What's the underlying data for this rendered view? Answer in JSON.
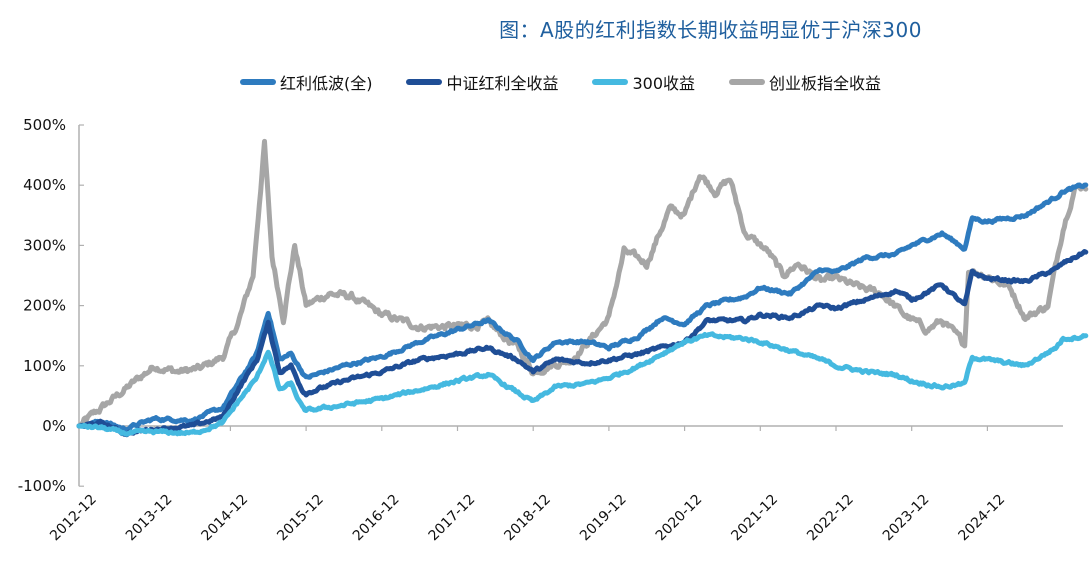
{
  "title": "图：A股的红利指数长期收益明显优于沪深300",
  "chart_data": {
    "type": "line",
    "title": "图：A股的红利指数长期收益明显优于沪深300",
    "xlabel": "",
    "ylabel": "",
    "ylim": [
      -100,
      500
    ],
    "yticks": [
      "500%",
      "400%",
      "300%",
      "200%",
      "100%",
      "0%",
      "-100%"
    ],
    "ytick_values": [
      500,
      400,
      300,
      200,
      100,
      0,
      -100
    ],
    "xticks": [
      "2012-12",
      "2013-12",
      "2014-12",
      "2015-12",
      "2016-12",
      "2017-12",
      "2018-12",
      "2019-12",
      "2020-12",
      "2021-12",
      "2022-12",
      "2023-12",
      "2024-12"
    ],
    "x_range": [
      "2012-12",
      "2025-12"
    ],
    "legend_position": "top",
    "grid": false,
    "series": [
      {
        "name": "红利低波(全)",
        "color": "#2e7bbf",
        "points": [
          [
            0,
            0
          ],
          [
            0.3,
            8
          ],
          [
            0.6,
            -5
          ],
          [
            1,
            12
          ],
          [
            1.5,
            10
          ],
          [
            1.9,
            30
          ],
          [
            2.1,
            70
          ],
          [
            2.35,
            120
          ],
          [
            2.5,
            190
          ],
          [
            2.65,
            110
          ],
          [
            2.8,
            120
          ],
          [
            2.95,
            90
          ],
          [
            3,
            80
          ],
          [
            3.5,
            100
          ],
          [
            4,
            115
          ],
          [
            4.5,
            140
          ],
          [
            5,
            160
          ],
          [
            5.4,
            175
          ],
          [
            5.8,
            140
          ],
          [
            6,
            110
          ],
          [
            6.3,
            140
          ],
          [
            6.7,
            140
          ],
          [
            7,
            130
          ],
          [
            7.4,
            150
          ],
          [
            7.7,
            180
          ],
          [
            8,
            170
          ],
          [
            8.3,
            200
          ],
          [
            8.8,
            215
          ],
          [
            9,
            230
          ],
          [
            9.4,
            220
          ],
          [
            9.8,
            260
          ],
          [
            10,
            255
          ],
          [
            10.4,
            280
          ],
          [
            10.8,
            285
          ],
          [
            11,
            300
          ],
          [
            11.4,
            320
          ],
          [
            11.7,
            295
          ],
          [
            11.8,
            345
          ],
          [
            12,
            340
          ],
          [
            12.5,
            350
          ],
          [
            12.9,
            380
          ],
          [
            13,
            390
          ],
          [
            13.3,
            400
          ]
        ]
      },
      {
        "name": "中证红利全收益",
        "color": "#1f4e96",
        "points": [
          [
            0,
            0
          ],
          [
            0.3,
            5
          ],
          [
            0.6,
            -12
          ],
          [
            1,
            -5
          ],
          [
            1.5,
            0
          ],
          [
            1.9,
            15
          ],
          [
            2.1,
            60
          ],
          [
            2.35,
            110
          ],
          [
            2.5,
            170
          ],
          [
            2.65,
            90
          ],
          [
            2.8,
            100
          ],
          [
            2.95,
            60
          ],
          [
            3,
            55
          ],
          [
            3.5,
            75
          ],
          [
            4,
            90
          ],
          [
            4.5,
            110
          ],
          [
            5,
            120
          ],
          [
            5.4,
            130
          ],
          [
            5.8,
            110
          ],
          [
            6,
            90
          ],
          [
            6.3,
            110
          ],
          [
            6.7,
            105
          ],
          [
            7,
            110
          ],
          [
            7.4,
            120
          ],
          [
            7.7,
            130
          ],
          [
            8,
            140
          ],
          [
            8.3,
            175
          ],
          [
            8.8,
            175
          ],
          [
            9,
            185
          ],
          [
            9.4,
            180
          ],
          [
            9.8,
            200
          ],
          [
            10,
            195
          ],
          [
            10.4,
            210
          ],
          [
            10.8,
            225
          ],
          [
            11,
            210
          ],
          [
            11.4,
            235
          ],
          [
            11.7,
            200
          ],
          [
            11.8,
            255
          ],
          [
            12,
            245
          ],
          [
            12.5,
            240
          ],
          [
            12.9,
            260
          ],
          [
            13,
            270
          ],
          [
            13.3,
            290
          ]
        ]
      },
      {
        "name": "300收益",
        "color": "#45b9e0",
        "points": [
          [
            0,
            0
          ],
          [
            0.3,
            -3
          ],
          [
            0.6,
            -12
          ],
          [
            1,
            -10
          ],
          [
            1.5,
            -12
          ],
          [
            1.9,
            5
          ],
          [
            2.1,
            40
          ],
          [
            2.35,
            80
          ],
          [
            2.5,
            125
          ],
          [
            2.65,
            60
          ],
          [
            2.8,
            70
          ],
          [
            2.95,
            30
          ],
          [
            3,
            25
          ],
          [
            3.5,
            35
          ],
          [
            4,
            45
          ],
          [
            4.5,
            60
          ],
          [
            5,
            75
          ],
          [
            5.4,
            85
          ],
          [
            5.8,
            55
          ],
          [
            6,
            40
          ],
          [
            6.3,
            65
          ],
          [
            6.7,
            70
          ],
          [
            7,
            80
          ],
          [
            7.4,
            100
          ],
          [
            7.7,
            120
          ],
          [
            8,
            140
          ],
          [
            8.3,
            150
          ],
          [
            8.8,
            145
          ],
          [
            9,
            140
          ],
          [
            9.4,
            125
          ],
          [
            9.8,
            110
          ],
          [
            10,
            100
          ],
          [
            10.4,
            90
          ],
          [
            10.8,
            85
          ],
          [
            11,
            75
          ],
          [
            11.4,
            65
          ],
          [
            11.7,
            70
          ],
          [
            11.8,
            115
          ],
          [
            12,
            110
          ],
          [
            12.5,
            100
          ],
          [
            12.9,
            130
          ],
          [
            13,
            145
          ],
          [
            13.3,
            150
          ]
        ]
      },
      {
        "name": "创业板指全收益",
        "color": "#a6a6a6",
        "points": [
          [
            0,
            0
          ],
          [
            0.3,
            30
          ],
          [
            0.6,
            60
          ],
          [
            1,
            100
          ],
          [
            1.3,
            90
          ],
          [
            1.6,
            95
          ],
          [
            1.9,
            115
          ],
          [
            2.1,
            170
          ],
          [
            2.3,
            250
          ],
          [
            2.45,
            470
          ],
          [
            2.55,
            280
          ],
          [
            2.7,
            180
          ],
          [
            2.85,
            300
          ],
          [
            3,
            200
          ],
          [
            3.3,
            220
          ],
          [
            3.6,
            215
          ],
          [
            4,
            185
          ],
          [
            4.5,
            165
          ],
          [
            5,
            165
          ],
          [
            5.4,
            170
          ],
          [
            5.8,
            130
          ],
          [
            6,
            90
          ],
          [
            6.2,
            100
          ],
          [
            6.5,
            110
          ],
          [
            6.8,
            150
          ],
          [
            7,
            180
          ],
          [
            7.2,
            290
          ],
          [
            7.5,
            270
          ],
          [
            7.8,
            360
          ],
          [
            8,
            350
          ],
          [
            8.2,
            420
          ],
          [
            8.4,
            390
          ],
          [
            8.6,
            410
          ],
          [
            8.8,
            320
          ],
          [
            9.1,
            290
          ],
          [
            9.3,
            250
          ],
          [
            9.5,
            270
          ],
          [
            9.8,
            240
          ],
          [
            10,
            245
          ],
          [
            10.3,
            230
          ],
          [
            10.6,
            220
          ],
          [
            10.9,
            185
          ],
          [
            11.2,
            160
          ],
          [
            11.4,
            175
          ],
          [
            11.7,
            135
          ],
          [
            11.75,
            260
          ],
          [
            12,
            250
          ],
          [
            12.3,
            230
          ],
          [
            12.5,
            180
          ],
          [
            12.8,
            200
          ],
          [
            13,
            330
          ],
          [
            13.15,
            395
          ],
          [
            13.3,
            400
          ]
        ]
      }
    ]
  }
}
